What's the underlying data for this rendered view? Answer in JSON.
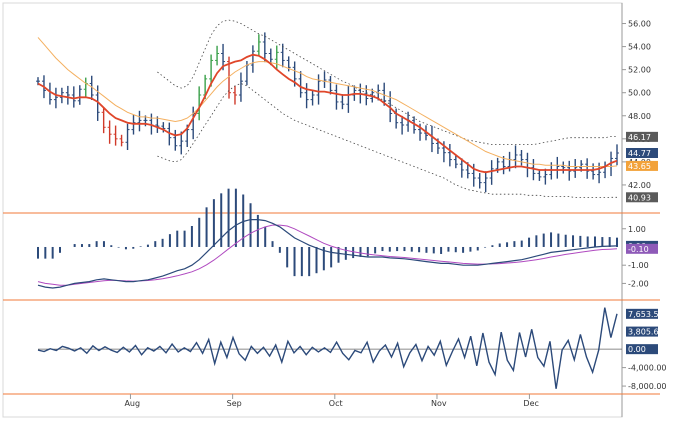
{
  "chart_data": [
    {
      "type": "price-ohlc",
      "y_ticks": [
        "56.00",
        "54.00",
        "52.00",
        "50.00",
        "48.00",
        "46.00",
        "44.00",
        "42.00"
      ],
      "ylim": [
        40.0,
        57.0
      ],
      "x_labels": [
        "Aug",
        "Sep",
        "Oct",
        "Nov",
        "Dec"
      ],
      "tags": [
        {
          "label": "46.17",
          "value": 46.17,
          "color": "#5a5a5a"
        },
        {
          "label": "44.77",
          "value": 44.77,
          "color": "#2c4a7a"
        },
        {
          "label": "43.65",
          "value": 43.65,
          "color": "#f2a23a"
        },
        {
          "label": "40.93",
          "value": 40.93,
          "color": "#5a5a5a"
        }
      ],
      "close": [
        51.0,
        50.2,
        49.4,
        49.6,
        50.0,
        49.8,
        49.3,
        50.3,
        50.8,
        49.8,
        48.3,
        47.0,
        46.4,
        46.0,
        45.7,
        46.8,
        47.4,
        47.6,
        47.6,
        47.2,
        47.1,
        46.9,
        46.1,
        45.4,
        45.8,
        46.8,
        48.2,
        49.8,
        51.2,
        52.8,
        53.4,
        52.7,
        50.0,
        49.8,
        51.0,
        52.4,
        53.6,
        54.4,
        53.4,
        52.9,
        53.5,
        52.8,
        52.2,
        51.2,
        50.0,
        49.4,
        49.8,
        51.0,
        51.1,
        50.2,
        49.2,
        49.0,
        49.8,
        50.2,
        49.9,
        49.5,
        50.0,
        50.2,
        49.3,
        48.2,
        47.4,
        47.2,
        47.6,
        46.8,
        46.5,
        46.3,
        45.6,
        45.2,
        44.8,
        44.2,
        43.8,
        43.3,
        43.0,
        42.6,
        42.2,
        42.6,
        43.4,
        44.0,
        43.6,
        44.2,
        44.6,
        44.2,
        43.5,
        43.0,
        42.7,
        42.9,
        43.3,
        43.6,
        43.5,
        43.2,
        43.5,
        43.8,
        43.2,
        42.9,
        43.1,
        43.6,
        44.3,
        44.77
      ],
      "sma_fast_red": [
        50.8,
        50.5,
        50.1,
        49.8,
        49.7,
        49.6,
        49.5,
        49.6,
        49.6,
        49.5,
        49.2,
        48.7,
        48.2,
        47.8,
        47.6,
        47.4,
        47.3,
        47.3,
        47.3,
        47.2,
        47.0,
        46.8,
        46.5,
        46.3,
        46.4,
        46.9,
        47.8,
        48.7,
        49.7,
        50.8,
        51.7,
        52.3,
        52.5,
        52.7,
        52.8,
        53.1,
        53.3,
        53.2,
        52.9,
        52.5,
        52.0,
        51.6,
        51.2,
        50.9,
        50.5,
        50.3,
        50.2,
        50.1,
        50.1,
        50.0,
        49.9,
        49.8,
        49.8,
        49.9,
        49.9,
        49.8,
        49.7,
        49.5,
        49.1,
        48.7,
        48.2,
        47.9,
        47.6,
        47.3,
        47.0,
        46.6,
        46.2,
        45.8,
        45.4,
        45.0,
        44.6,
        44.2,
        43.8,
        43.4,
        43.2,
        43.1,
        43.2,
        43.3,
        43.4,
        43.5,
        43.6,
        43.6,
        43.5,
        43.4,
        43.3,
        43.3,
        43.3,
        43.3,
        43.3,
        43.3,
        43.3,
        43.3,
        43.3,
        43.3,
        43.4,
        43.6,
        43.9,
        44.1
      ],
      "sma_slow_orange": [
        54.8,
        54.2,
        53.6,
        53.0,
        52.5,
        52.0,
        51.6,
        51.2,
        50.8,
        50.5,
        50.1,
        49.7,
        49.3,
        48.9,
        48.6,
        48.3,
        48.1,
        47.9,
        47.9,
        47.8,
        47.8,
        47.7,
        47.6,
        47.5,
        47.6,
        47.8,
        48.2,
        48.7,
        49.3,
        49.9,
        50.5,
        51.0,
        51.4,
        51.8,
        52.1,
        52.4,
        52.6,
        52.7,
        52.7,
        52.6,
        52.5,
        52.3,
        52.1,
        51.9,
        51.7,
        51.4,
        51.2,
        51.1,
        51.0,
        50.9,
        50.8,
        50.7,
        50.6,
        50.5,
        50.4,
        50.3,
        50.2,
        50.0,
        49.8,
        49.6,
        49.4,
        49.1,
        48.8,
        48.5,
        48.2,
        47.9,
        47.6,
        47.3,
        47.0,
        46.7,
        46.4,
        46.1,
        45.8,
        45.5,
        45.2,
        44.9,
        44.7,
        44.5,
        44.3,
        44.2,
        44.1,
        44.0,
        43.9,
        43.8,
        43.8,
        43.7,
        43.7,
        43.7,
        43.7,
        43.6,
        43.6,
        43.6,
        43.6,
        43.6,
        43.6,
        43.6,
        43.6,
        43.65
      ],
      "band_upper": [
        null,
        null,
        null,
        null,
        null,
        null,
        null,
        null,
        null,
        null,
        null,
        null,
        null,
        null,
        null,
        null,
        null,
        null,
        null,
        null,
        51.8,
        51.4,
        51.0,
        50.6,
        50.4,
        50.6,
        51.4,
        52.6,
        53.8,
        55.0,
        55.8,
        56.2,
        56.3,
        56.2,
        56.0,
        55.7,
        55.4,
        55.1,
        54.9,
        54.6,
        54.3,
        54.0,
        53.7,
        53.4,
        53.1,
        52.8,
        52.5,
        52.2,
        51.9,
        51.6,
        51.3,
        51.0,
        50.8,
        50.5,
        50.2,
        50.0,
        49.8,
        49.6,
        49.3,
        49.0,
        48.7,
        48.4,
        48.1,
        47.8,
        47.5,
        47.3,
        47.1,
        46.9,
        46.7,
        46.5,
        46.3,
        46.1,
        45.9,
        45.8,
        45.7,
        45.6,
        45.5,
        45.5,
        45.5,
        45.5,
        45.5,
        45.5,
        45.5,
        45.5,
        45.6,
        45.7,
        45.8,
        45.9,
        46.0,
        46.1,
        46.1,
        46.1,
        46.1,
        46.1,
        46.1,
        46.1,
        46.2,
        46.2
      ],
      "band_lower": [
        null,
        null,
        null,
        null,
        null,
        null,
        null,
        null,
        null,
        null,
        null,
        null,
        null,
        null,
        null,
        null,
        null,
        null,
        null,
        null,
        44.5,
        44.3,
        44.1,
        44.0,
        44.2,
        44.8,
        45.6,
        46.4,
        47.2,
        48.0,
        48.8,
        49.6,
        50.2,
        50.6,
        50.8,
        50.6,
        50.2,
        49.8,
        49.4,
        49.0,
        48.6,
        48.2,
        47.9,
        47.6,
        47.4,
        47.2,
        47.0,
        46.8,
        46.6,
        46.4,
        46.2,
        46.0,
        45.8,
        45.6,
        45.4,
        45.2,
        45.0,
        44.8,
        44.6,
        44.4,
        44.2,
        44.0,
        43.8,
        43.6,
        43.4,
        43.2,
        43.0,
        42.8,
        42.6,
        42.3,
        42.0,
        41.8,
        41.6,
        41.5,
        41.4,
        41.3,
        41.2,
        41.2,
        41.2,
        41.2,
        41.2,
        41.2,
        41.1,
        41.1,
        41.1,
        41.0,
        41.0,
        41.0,
        41.0,
        41.0,
        40.9,
        40.9,
        40.9,
        40.9,
        40.9,
        40.9,
        40.93,
        40.93
      ]
    },
    {
      "type": "macd",
      "y_ticks": [
        "1.00",
        "-1.00",
        "-2.00"
      ],
      "ylim": [
        -2.8,
        1.7
      ],
      "tags": [
        {
          "label": "0.06",
          "value": 0.06,
          "color": "#2c4a7a"
        },
        {
          "label": "-0.10",
          "value": -0.1,
          "color": "#8e5ab8"
        }
      ],
      "macd": [
        -2.1,
        -2.2,
        -2.25,
        -2.2,
        -2.1,
        -2.0,
        -1.95,
        -1.9,
        -1.8,
        -1.75,
        -1.8,
        -1.85,
        -1.9,
        -1.9,
        -1.85,
        -1.8,
        -1.7,
        -1.6,
        -1.45,
        -1.3,
        -1.2,
        -1.0,
        -0.7,
        -0.3,
        0.1,
        0.5,
        0.9,
        1.2,
        1.4,
        1.5,
        1.5,
        1.45,
        1.3,
        1.1,
        0.8,
        0.5,
        0.3,
        0.1,
        -0.05,
        -0.2,
        -0.3,
        -0.35,
        -0.4,
        -0.45,
        -0.5,
        -0.55,
        -0.55,
        -0.55,
        -0.6,
        -0.62,
        -0.65,
        -0.7,
        -0.75,
        -0.8,
        -0.85,
        -0.9,
        -0.9,
        -0.95,
        -1.0,
        -1.0,
        -1.0,
        -0.95,
        -0.9,
        -0.85,
        -0.8,
        -0.75,
        -0.7,
        -0.6,
        -0.5,
        -0.4,
        -0.3,
        -0.25,
        -0.2,
        -0.15,
        -0.1,
        -0.05,
        0.0,
        0.03,
        0.05,
        0.06
      ],
      "signal": [
        -1.9,
        -2.0,
        -2.05,
        -2.1,
        -2.1,
        -2.05,
        -2.0,
        -1.95,
        -1.9,
        -1.85,
        -1.83,
        -1.84,
        -1.86,
        -1.87,
        -1.86,
        -1.84,
        -1.8,
        -1.74,
        -1.67,
        -1.58,
        -1.48,
        -1.36,
        -1.2,
        -0.98,
        -0.72,
        -0.42,
        -0.1,
        0.2,
        0.5,
        0.75,
        0.95,
        1.1,
        1.2,
        1.2,
        1.15,
        1.0,
        0.8,
        0.6,
        0.4,
        0.2,
        0.05,
        -0.08,
        -0.18,
        -0.26,
        -0.33,
        -0.39,
        -0.44,
        -0.48,
        -0.52,
        -0.55,
        -0.58,
        -0.62,
        -0.66,
        -0.7,
        -0.74,
        -0.78,
        -0.82,
        -0.86,
        -0.9,
        -0.92,
        -0.94,
        -0.94,
        -0.93,
        -0.91,
        -0.88,
        -0.85,
        -0.81,
        -0.76,
        -0.7,
        -0.63,
        -0.55,
        -0.48,
        -0.41,
        -0.35,
        -0.29,
        -0.23,
        -0.18,
        -0.14,
        -0.12,
        -0.1
      ]
    },
    {
      "type": "oscillator",
      "y_ticks": [
        "-4,000.00",
        "-8,000.00"
      ],
      "ylim": [
        -9500,
        10000
      ],
      "tags": [
        {
          "label": "7,653.51",
          "value": 7653.51,
          "color": "#2c4a7a"
        },
        {
          "label": "3,805.63",
          "value": 3805.63,
          "color": "#2c4a7a"
        },
        {
          "label": "0.00",
          "value": 0.0,
          "color": "#2c4a7a"
        }
      ],
      "values": [
        -200,
        -500,
        100,
        -300,
        600,
        200,
        -400,
        300,
        -900,
        700,
        -300,
        500,
        -200,
        -700,
        400,
        -600,
        800,
        -1200,
        300,
        -400,
        600,
        -800,
        1100,
        -600,
        300,
        -500,
        1400,
        -900,
        2100,
        -3100,
        1500,
        -1800,
        2500,
        -1000,
        -2400,
        600,
        -900,
        400,
        -1500,
        900,
        -2800,
        1700,
        -800,
        600,
        -1200,
        400,
        -600,
        300,
        -700,
        1500,
        -900,
        -2300,
        -300,
        -800,
        1500,
        -2800,
        -400,
        900,
        -1700,
        1300,
        -3800,
        -800,
        1000,
        -2500,
        600,
        -1300,
        1700,
        -3500,
        -500,
        2200,
        -1800,
        2800,
        -3600,
        3500,
        -2800,
        -5500,
        3700,
        -2400,
        -4600,
        3600,
        -1700,
        4300,
        -1800,
        -3700,
        1700,
        -8600,
        -200,
        1900,
        -2300,
        3200,
        -1700,
        -5000,
        -200,
        9000,
        2500,
        7653
      ]
    }
  ]
}
